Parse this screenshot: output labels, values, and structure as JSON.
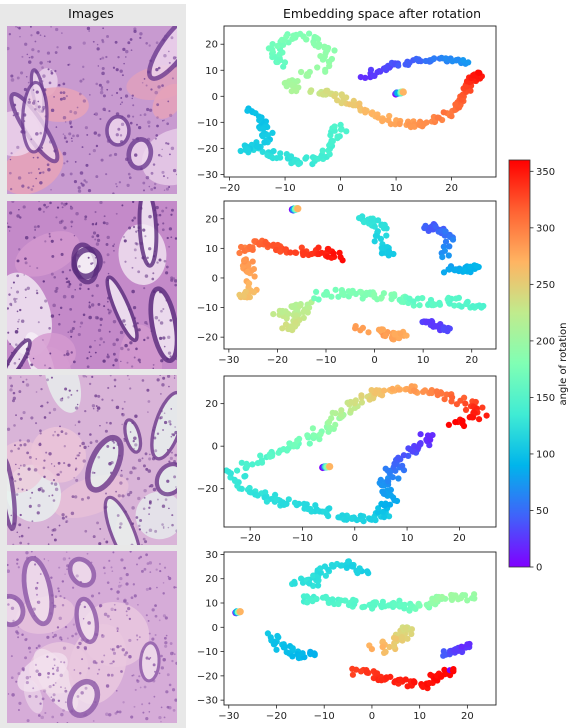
{
  "figure": {
    "left_title": "Images",
    "right_title": "Embedding space after rotation"
  },
  "colorbar": {
    "label": "angle of rotation",
    "ticks": [
      0,
      50,
      100,
      150,
      200,
      250,
      300,
      350
    ],
    "range": [
      0,
      360
    ],
    "colormap": "rainbow"
  },
  "tiles": [
    {
      "name": "tissue-tile-1",
      "base": "#c89ad0",
      "dark": "#6f3f92",
      "light": "#efd8ee",
      "accent": "#e7a3b8"
    },
    {
      "name": "tissue-tile-2",
      "base": "#c48ac9",
      "dark": "#5b2d7e",
      "light": "#f5eef6",
      "accent": "#d59ad0"
    },
    {
      "name": "tissue-tile-3",
      "base": "#d9b4d8",
      "dark": "#6e3d8d",
      "light": "#e9f4ef",
      "accent": "#ecc5d9"
    },
    {
      "name": "tissue-tile-4",
      "base": "#d6acd8",
      "dark": "#8d5aa8",
      "light": "#f2e1ee",
      "accent": "#e9c7de"
    }
  ],
  "chart_data": [
    {
      "type": "scatter",
      "title": "Embedding space after rotation",
      "xlim": [
        -21,
        28
      ],
      "ylim": [
        -31,
        27
      ],
      "xticks": [
        -20,
        -10,
        0,
        10,
        20
      ],
      "yticks": [
        -30,
        -20,
        -10,
        0,
        10,
        20
      ],
      "legend": "none",
      "color_by": "angle of rotation",
      "series": [
        {
          "points": [
            [
              -15,
              -20,
              118
            ],
            [
              -11,
              -23,
              122
            ],
            [
              -7,
              -25,
              130
            ],
            [
              -3,
              -24,
              138
            ],
            [
              -1,
              -17,
              142
            ],
            [
              0,
              -11,
              146
            ]
          ],
          "spread": 1.3
        },
        {
          "points": [
            [
              -16,
              -5,
              95
            ],
            [
              -14,
              -10,
              100
            ],
            [
              -13,
              -14,
              104
            ],
            [
              -15,
              -19,
              108
            ],
            [
              -18,
              -21,
              112
            ]
          ],
          "spread": 1.2
        },
        {
          "points": [
            [
              -11,
              12,
              160
            ],
            [
              -12,
              18,
              168
            ],
            [
              -9,
              23,
              176
            ],
            [
              -5,
              23,
              184
            ],
            [
              -2,
              18,
              190
            ],
            [
              -3,
              11,
              196
            ],
            [
              -10,
              5,
              206
            ],
            [
              -8,
              2,
              212
            ]
          ],
          "spread": 1.2
        },
        {
          "points": [
            [
              -5,
              2,
              228
            ],
            [
              -1,
              1,
              240
            ],
            [
              2,
              -3,
              256
            ],
            [
              6,
              -7,
              268
            ],
            [
              10,
              -10,
              280
            ],
            [
              14,
              -11,
              290
            ],
            [
              18,
              -8,
              300
            ],
            [
              21,
              -4,
              310
            ],
            [
              23,
              2,
              325
            ],
            [
              24,
              7,
              342
            ],
            [
              25,
              9,
              356
            ]
          ],
          "spread": 1.0
        },
        {
          "points": [
            [
              4,
              7,
              20
            ],
            [
              8,
              11,
              32
            ],
            [
              12,
              13,
              42
            ],
            [
              16,
              14,
              52
            ],
            [
              20,
              14,
              64
            ],
            [
              23,
              13,
              74
            ]
          ],
          "spread": 0.9
        },
        {
          "points": [
            [
              10,
              1,
              0
            ],
            [
              10.5,
              1.3,
              90
            ],
            [
              11,
              1.5,
              180
            ],
            [
              11.3,
              1.6,
              270
            ]
          ],
          "spread": 0.15
        }
      ]
    },
    {
      "type": "scatter",
      "title": "",
      "xlim": [
        -31,
        25
      ],
      "ylim": [
        -24,
        26
      ],
      "xticks": [
        -30,
        -20,
        -10,
        0,
        10,
        20
      ],
      "yticks": [
        -20,
        -10,
        0,
        10,
        20
      ],
      "legend": "none",
      "color_by": "angle of rotation",
      "series": [
        {
          "points": [
            [
              -27,
              9,
              300
            ],
            [
              -24,
              12,
              312
            ],
            [
              -20,
              10,
              322
            ],
            [
              -15,
              9,
              332
            ],
            [
              -10,
              9,
              345
            ],
            [
              -7,
              7,
              355
            ]
          ],
          "spread": 1.3
        },
        {
          "points": [
            [
              -26,
              2,
              278
            ],
            [
              -26,
              6,
              290
            ],
            [
              -25,
              -5,
              265
            ],
            [
              -27,
              -6,
              258
            ]
          ],
          "spread": 1.2
        },
        {
          "points": [
            [
              -20,
              -13,
              228
            ],
            [
              -17,
              -11,
              222
            ],
            [
              -14,
              -9,
              215
            ],
            [
              -16,
              -15,
              232
            ],
            [
              -19,
              -17,
              238
            ]
          ],
          "spread": 1.4
        },
        {
          "points": [
            [
              -12,
              -6,
              170
            ],
            [
              -7,
              -5,
              176
            ],
            [
              -2,
              -6,
              182
            ],
            [
              3,
              -6,
              186
            ],
            [
              8,
              -8,
              160
            ],
            [
              13,
              -8,
              155
            ],
            [
              18,
              -8,
              150
            ],
            [
              22,
              -10,
              145
            ]
          ],
          "spread": 1.4
        },
        {
          "points": [
            [
              -3,
              20,
              125
            ],
            [
              0,
              19,
              130
            ],
            [
              2,
              17,
              120
            ],
            [
              1,
              9,
              110
            ],
            [
              3,
              9,
              105
            ]
          ],
          "spread": 1.4
        },
        {
          "points": [
            [
              10,
              17,
              45
            ],
            [
              13,
              17,
              40
            ],
            [
              15,
              15,
              55
            ],
            [
              15,
              3,
              80
            ],
            [
              19,
              3,
              88
            ],
            [
              21,
              4,
              92
            ]
          ],
          "spread": 1.2
        },
        {
          "points": [
            [
              10,
              -14,
              30
            ],
            [
              13,
              -16,
              25
            ],
            [
              15,
              -18,
              32
            ]
          ],
          "spread": 1.0
        },
        {
          "points": [
            [
              1,
              -18,
              290
            ],
            [
              4,
              -20,
              282
            ],
            [
              6,
              -19,
              275
            ],
            [
              -4,
              -17,
              285
            ]
          ],
          "spread": 1.0
        },
        {
          "points": [
            [
              -17,
              23,
              0
            ],
            [
              -16.6,
              23.2,
              90
            ],
            [
              -16.2,
              23.3,
              180
            ],
            [
              -15.8,
              23.4,
              270
            ]
          ],
          "spread": 0.15
        }
      ]
    },
    {
      "type": "scatter",
      "title": "",
      "xlim": [
        -25,
        27
      ],
      "ylim": [
        -38,
        33
      ],
      "xticks": [
        -20,
        -10,
        0,
        10,
        20
      ],
      "yticks": [
        -20,
        0,
        20
      ],
      "legend": "none",
      "color_by": "angle of rotation",
      "series": [
        {
          "points": [
            [
              -23,
              -12,
              128
            ],
            [
              -21,
              -19,
              130
            ],
            [
              -17,
              -24,
              122
            ],
            [
              -13,
              -27,
              120
            ],
            [
              -8,
              -29,
              118
            ],
            [
              -3,
              -32,
              115
            ],
            [
              1,
              -34,
              112
            ],
            [
              5,
              -33,
              108
            ],
            [
              7,
              -26,
              85
            ],
            [
              6,
              -20,
              75
            ],
            [
              7,
              -13,
              60
            ],
            [
              9,
              -6,
              45
            ],
            [
              12,
              0,
              30
            ],
            [
              14,
              5,
              18
            ]
          ],
          "spread": 1.6
        },
        {
          "points": [
            [
              -21,
              -10,
              140
            ],
            [
              -17,
              -5,
              150
            ],
            [
              -12,
              0,
              165
            ],
            [
              -8,
              5,
              180
            ],
            [
              -5,
              10,
              195
            ],
            [
              -2,
              17,
              220
            ],
            [
              1,
              22,
              240
            ],
            [
              4,
              25,
              260
            ],
            [
              9,
              27,
              275
            ],
            [
              14,
              26,
              292
            ],
            [
              19,
              23,
              312
            ],
            [
              23,
              18,
              335
            ],
            [
              24,
              14,
              350
            ],
            [
              18,
              10,
              358
            ]
          ],
          "spread": 1.6
        },
        {
          "points": [
            [
              -6,
              -10,
              0
            ],
            [
              -5.6,
              -9.8,
              90
            ],
            [
              -5.2,
              -9.7,
              180
            ],
            [
              -4.8,
              -9.6,
              270
            ]
          ],
          "spread": 0.15
        }
      ]
    },
    {
      "type": "scatter",
      "title": "",
      "xlim": [
        -31,
        26
      ],
      "ylim": [
        -32,
        31
      ],
      "xticks": [
        -30,
        -20,
        -10,
        0,
        10,
        20
      ],
      "yticks": [
        -30,
        -20,
        -10,
        0,
        10,
        20,
        30
      ],
      "legend": "none",
      "color_by": "angle of rotation",
      "series": [
        {
          "points": [
            [
              -16,
              19,
              122
            ],
            [
              -12,
              18,
              125
            ],
            [
              -10,
              24,
              118
            ],
            [
              -5,
              26,
              112
            ],
            [
              -1,
              23,
              108
            ]
          ],
          "spread": 1.4
        },
        {
          "points": [
            [
              -14,
              12,
              140
            ],
            [
              -9,
              11,
              145
            ],
            [
              -4,
              10,
              150
            ],
            [
              1,
              9,
              155
            ],
            [
              5,
              10,
              158
            ],
            [
              9,
              8,
              165
            ],
            [
              13,
              11,
              190
            ],
            [
              17,
              13,
              205
            ],
            [
              21,
              12,
              195
            ]
          ],
          "spread": 1.5
        },
        {
          "points": [
            [
              -21,
              -3,
              102
            ],
            [
              -19,
              -8,
              98
            ],
            [
              -15,
              -12,
              92
            ],
            [
              -12,
              -11,
              88
            ]
          ],
          "spread": 1.4
        },
        {
          "points": [
            [
              3,
              -10,
              262
            ],
            [
              6,
              -4,
              250
            ],
            [
              8,
              0,
              240
            ],
            [
              0,
              -9,
              275
            ]
          ],
          "spread": 1.3
        },
        {
          "points": [
            [
              -4,
              -18,
              330
            ],
            [
              1,
              -20,
              340
            ],
            [
              6,
              -22,
              345
            ],
            [
              11,
              -24,
              352
            ],
            [
              14,
              -20,
              356
            ],
            [
              17,
              -18,
              358
            ]
          ],
          "spread": 1.4
        },
        {
          "points": [
            [
              15,
              -11,
              45
            ],
            [
              18,
              -10,
              30
            ],
            [
              20,
              -7,
              20
            ]
          ],
          "spread": 1.1
        },
        {
          "points": [
            [
              -28.5,
              6,
              0
            ],
            [
              -28.2,
              6.2,
              90
            ],
            [
              -27.9,
              6.3,
              180
            ],
            [
              -27.6,
              6.4,
              270
            ]
          ],
          "spread": 0.15
        }
      ]
    }
  ]
}
